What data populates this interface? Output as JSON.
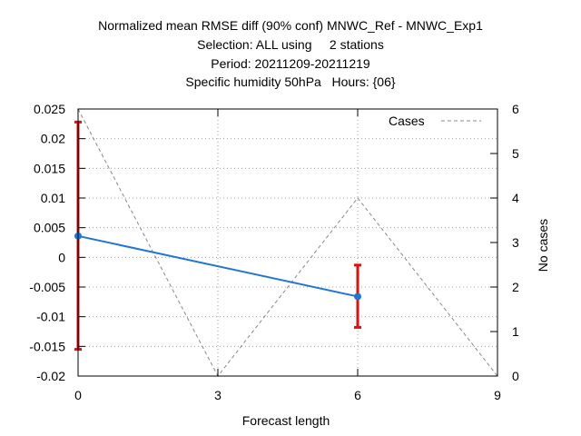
{
  "chart_data": {
    "type": "line",
    "title": [
      "Normalized mean RMSE diff (90% conf) MNWC_Ref - MNWC_Exp1",
      "Selection: ALL using     2 stations",
      "Period: 20211209-20211219",
      "Specific humidity 50hPa   Hours: {06}"
    ],
    "xlabel": "Forecast length",
    "ylabel": "",
    "y2label": "No cases",
    "xlim": [
      0,
      9
    ],
    "ylim": [
      -0.02,
      0.025
    ],
    "y2lim": [
      0,
      6
    ],
    "x_ticks": [
      0,
      3,
      6,
      9
    ],
    "y_ticks": [
      "-0.02",
      "-0.015",
      "-0.01",
      "-0.005",
      "0",
      "0.005",
      "0.01",
      "0.015",
      "0.02",
      "0.025"
    ],
    "y2_ticks": [
      "0",
      "1",
      "2",
      "3",
      "4",
      "5",
      "6"
    ],
    "grid": true,
    "legend_position": "top-right",
    "series": [
      {
        "name": "",
        "color": "#1f77d4",
        "axis": "y",
        "x": [
          0,
          6
        ],
        "y": [
          0.0036,
          -0.0066
        ],
        "ci_low": [
          -0.0155,
          -0.0118
        ],
        "ci_high": [
          0.0228,
          -0.0013
        ],
        "errorbar_color": "#e01010"
      },
      {
        "name": "Cases",
        "color": "#888888",
        "axis": "y2",
        "style": "dashed",
        "x": [
          0,
          3,
          6,
          9
        ],
        "y": [
          6,
          0,
          4,
          0
        ]
      }
    ]
  }
}
